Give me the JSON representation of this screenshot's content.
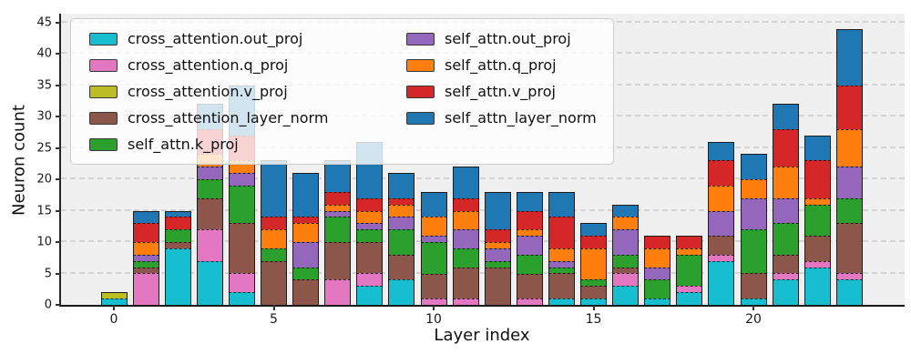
{
  "axes": {
    "x_label": "Layer index",
    "y_label": "Neuron count",
    "y_ticks": [
      0,
      5,
      10,
      15,
      20,
      25,
      30,
      35,
      40,
      45
    ],
    "x_ticks": [
      0,
      5,
      10,
      15,
      20
    ],
    "y_max_display": 46.4,
    "grid": "dashed horizontal",
    "plot_bg": "#f0f0f1",
    "spine_color": "#1a1a1a"
  },
  "legend": {
    "position": "upper left",
    "columns": [
      [
        0,
        1,
        2,
        3,
        4
      ],
      [
        5,
        6,
        7,
        8
      ]
    ]
  },
  "chart_data": {
    "type": "bar",
    "stacked": true,
    "title": "",
    "xlabel": "Layer index",
    "ylabel": "Neuron count",
    "ylim": [
      0,
      45
    ],
    "legend_position": "upper left, 2 columns, semi-transparent",
    "grid": true,
    "categories": [
      0,
      1,
      2,
      3,
      4,
      5,
      6,
      7,
      8,
      9,
      10,
      11,
      12,
      13,
      14,
      15,
      16,
      17,
      18,
      19,
      20,
      21,
      22,
      23
    ],
    "series": [
      {
        "name": "cross_attention.out_proj",
        "color": "#17becf",
        "values": [
          1,
          0,
          9,
          7,
          2,
          0,
          0,
          0,
          3,
          4,
          0,
          0,
          0,
          0,
          1,
          1,
          3,
          1,
          2,
          7,
          1,
          4,
          6,
          4
        ]
      },
      {
        "name": "cross_attention.q_proj",
        "color": "#e377c2",
        "values": [
          0,
          5,
          0,
          5,
          3,
          0,
          0,
          4,
          2,
          0,
          1,
          1,
          0,
          1,
          0,
          0,
          2,
          0,
          1,
          1,
          0,
          1,
          1,
          1
        ]
      },
      {
        "name": "cross_attention.v_proj",
        "color": "#bcbd22",
        "values": [
          1,
          0,
          0,
          0,
          0,
          0,
          0,
          0,
          0,
          0,
          0,
          0,
          0,
          0,
          0,
          0,
          0,
          0,
          0,
          0,
          0,
          0,
          0,
          0
        ]
      },
      {
        "name": "cross_attention_layer_norm",
        "color": "#8c564b",
        "values": [
          0,
          1,
          1,
          5,
          8,
          7,
          4,
          6,
          5,
          4,
          4,
          5,
          6,
          4,
          4,
          2,
          1,
          0,
          0,
          3,
          4,
          3,
          4,
          8
        ]
      },
      {
        "name": "self_attn.k_proj",
        "color": "#2ca02c",
        "values": [
          0,
          1,
          2,
          3,
          6,
          2,
          2,
          4,
          2,
          4,
          5,
          3,
          1,
          3,
          1,
          1,
          2,
          3,
          5,
          0,
          7,
          5,
          5,
          4
        ]
      },
      {
        "name": "self_attn.out_proj",
        "color": "#9467bd",
        "values": [
          0,
          1,
          0,
          2,
          2,
          0,
          4,
          1,
          1,
          2,
          1,
          3,
          2,
          3,
          1,
          0,
          4,
          2,
          0,
          4,
          5,
          4,
          0,
          5
        ]
      },
      {
        "name": "self_attn.q_proj",
        "color": "#ff7f0e",
        "values": [
          0,
          2,
          0,
          2,
          2,
          3,
          3,
          1,
          2,
          2,
          3,
          3,
          1,
          1,
          2,
          5,
          2,
          3,
          1,
          4,
          3,
          5,
          1,
          6
        ]
      },
      {
        "name": "self_attn.v_proj",
        "color": "#d62728",
        "values": [
          0,
          3,
          2,
          4,
          4,
          2,
          1,
          2,
          2,
          1,
          0,
          2,
          2,
          3,
          5,
          2,
          0,
          2,
          2,
          4,
          0,
          6,
          6,
          7
        ]
      },
      {
        "name": "self_attn_layer_norm",
        "color": "#1f77b4",
        "values": [
          0,
          2,
          1,
          4,
          8,
          9,
          7,
          5,
          9,
          4,
          4,
          5,
          6,
          3,
          4,
          2,
          2,
          0,
          0,
          3,
          4,
          4,
          4,
          9
        ]
      }
    ],
    "totals": [
      2,
      15,
      15,
      32,
      35,
      23,
      21,
      23,
      26,
      21,
      18,
      22,
      18,
      18,
      18,
      13,
      16,
      11,
      11,
      26,
      24,
      32,
      27,
      44
    ]
  }
}
